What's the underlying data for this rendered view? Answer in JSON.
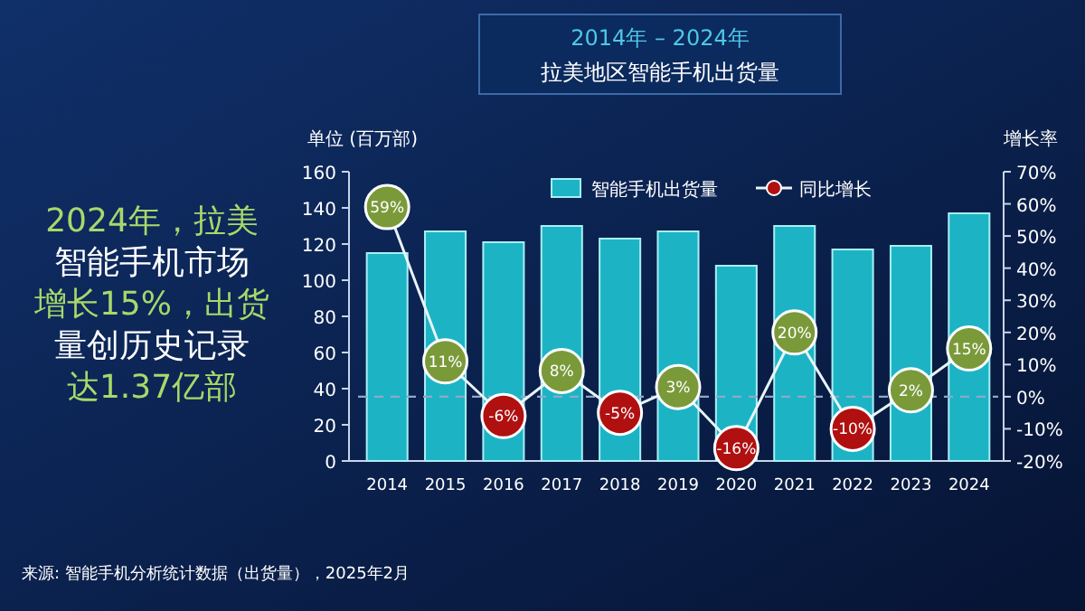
{
  "chart_data": {
    "type": "bar",
    "title": "2014年 – 2024年",
    "subtitle": "拉美地区智能手机出货量",
    "ylabel": "单位 (百万部)",
    "y2label": "增长率",
    "categories": [
      "2014",
      "2015",
      "2016",
      "2017",
      "2018",
      "2019",
      "2020",
      "2021",
      "2022",
      "2023",
      "2024"
    ],
    "series": [
      {
        "name": "智能手机出货量",
        "color": "#1cb4c4",
        "values": [
          115,
          127,
          121,
          130,
          123,
          127,
          108,
          130,
          117,
          119,
          137
        ]
      },
      {
        "name": "同比增长",
        "type": "line",
        "axis": "y2",
        "color": "#e8f4f8",
        "colors": [
          "#7a9a3a",
          "#7a9a3a",
          "#b01010",
          "#7a9a3a",
          "#b01010",
          "#7a9a3a",
          "#b01010",
          "#7a9a3a",
          "#b01010",
          "#7a9a3a",
          "#7a9a3a"
        ],
        "values": [
          59,
          11,
          -6,
          8,
          -5,
          3,
          -16,
          20,
          -10,
          2,
          15
        ],
        "value_labels": [
          "59%",
          "11%",
          "-6%",
          "8%",
          "-5%",
          "3%",
          "-16%",
          "20%",
          "-10%",
          "2%",
          "15%"
        ]
      }
    ],
    "ylim": [
      0,
      160
    ],
    "yticks": [
      0,
      20,
      40,
      60,
      80,
      100,
      120,
      140,
      160
    ],
    "y2lim": [
      -20,
      70
    ],
    "y2ticks": [
      {
        "value": -20,
        "label": "-20%"
      },
      {
        "value": -10,
        "label": "-10%"
      },
      {
        "value": 0,
        "label": "0%"
      },
      {
        "value": 10,
        "label": "10%"
      },
      {
        "value": 20,
        "label": "20%"
      },
      {
        "value": 30,
        "label": "30%"
      },
      {
        "value": 40,
        "label": "40%"
      },
      {
        "value": 50,
        "label": "50%"
      },
      {
        "value": 60,
        "label": "60%"
      },
      {
        "value": 70,
        "label": "70%"
      }
    ],
    "ref_lines": [
      {
        "axis": "y2",
        "value": 0,
        "color": "#8fa8c8",
        "line_style": "dashed"
      }
    ],
    "grid": false,
    "legend": "top",
    "marker": "circle",
    "annotations": [
      "2024年，拉美智能手机市场增长15%，出货量创历史记录达1.37亿部",
      "来源: 智能手机分析统计数据（出货量），2025年2月"
    ]
  }
}
